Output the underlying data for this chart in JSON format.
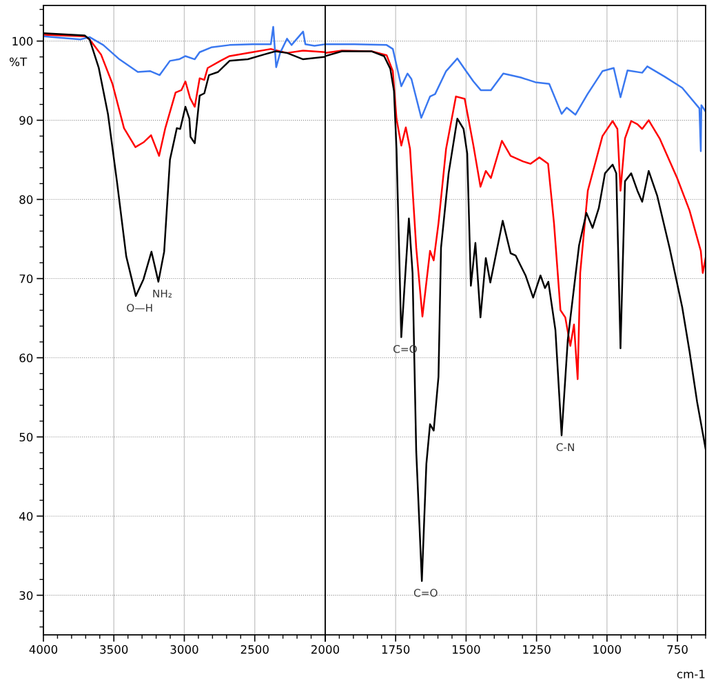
{
  "chart_data": [
    {
      "type": "line",
      "ylabel": "%T",
      "xlim": [
        4000,
        2000
      ],
      "xticks": [
        4000,
        3500,
        3000,
        2500,
        {
          "value": 2000,
          "label": null
        }
      ],
      "ylim": [
        25,
        104.5
      ],
      "yticks": [
        30,
        40,
        50,
        60,
        70,
        80,
        90,
        100
      ],
      "grid": true,
      "marker": "none",
      "line_style": "solid",
      "annotations": [
        {
          "text": "O—H",
          "x": 3344,
          "y": 67.8
        },
        {
          "text": "NH₂",
          "x": 3184,
          "y": 69.6
        }
      ],
      "series": [
        {
          "color": "#ff0000",
          "x": [
            4000,
            3707,
            3672,
            3591,
            3510,
            3428,
            3347,
            3290,
            3236,
            3179,
            3135,
            3062,
            3021,
            2992,
            2959,
            2926,
            2891,
            2858,
            2834,
            2744,
            2679,
            2516,
            2386,
            2271,
            2157,
            2000
          ],
          "values": [
            100.8,
            100.6,
            100.2,
            98.3,
            94.6,
            89.0,
            86.6,
            87.2,
            88.1,
            85.5,
            89.0,
            93.5,
            93.8,
            94.9,
            92.8,
            91.7,
            95.3,
            95.1,
            96.6,
            97.5,
            98.1,
            98.6,
            99.0,
            98.5,
            98.8,
            98.6
          ]
        },
        {
          "color": "#3a78f0",
          "x": [
            4000,
            3738,
            3672,
            3575,
            3461,
            3330,
            3241,
            3175,
            3102,
            3037,
            2992,
            2926,
            2891,
            2809,
            2679,
            2516,
            2386,
            2369,
            2348,
            2320,
            2271,
            2239,
            2157,
            2141,
            2076,
            2000
          ],
          "values": [
            100.6,
            100.2,
            100.5,
            99.5,
            97.7,
            96.1,
            96.2,
            95.7,
            97.5,
            97.7,
            98.1,
            97.7,
            98.6,
            99.2,
            99.5,
            99.6,
            99.6,
            101.8,
            96.7,
            98.5,
            100.3,
            99.5,
            101.2,
            99.6,
            99.4,
            99.6
          ]
        },
        {
          "color": "#000000",
          "x": [
            4000,
            3707,
            3672,
            3607,
            3542,
            3477,
            3412,
            3344,
            3290,
            3233,
            3184,
            3143,
            3102,
            3053,
            3029,
            2992,
            2964,
            2956,
            2926,
            2891,
            2858,
            2825,
            2760,
            2679,
            2549,
            2434,
            2353,
            2271,
            2157,
            2000
          ],
          "values": [
            101.0,
            100.7,
            100.2,
            96.6,
            90.8,
            82.1,
            72.8,
            67.8,
            69.9,
            73.4,
            69.6,
            73.4,
            85.0,
            89.0,
            88.9,
            91.7,
            90.2,
            87.9,
            87.1,
            93.1,
            93.4,
            95.7,
            96.1,
            97.5,
            97.7,
            98.3,
            98.7,
            98.5,
            97.7,
            98.0
          ]
        }
      ]
    },
    {
      "type": "line",
      "xlabel": "cm-1",
      "xlim": [
        2000,
        650
      ],
      "xticks": [
        2000,
        1750,
        1500,
        1250,
        1000,
        750
      ],
      "ylim": [
        25,
        104.5
      ],
      "yticks": [
        30,
        40,
        50,
        60,
        70,
        80,
        90,
        100
      ],
      "tick_labels": "x",
      "grid": true,
      "marker": "none",
      "line_style": "solid",
      "annotations": [
        {
          "text": "C=O",
          "x": 1730,
          "y": 62.6
        },
        {
          "text": "C=O",
          "x": 1657,
          "y": 31.8
        },
        {
          "text": "C-N",
          "x": 1161,
          "y": 50.2
        }
      ],
      "series": [
        {
          "color": "#ff0000",
          "x": [
            2000,
            1941,
            1835,
            1782,
            1760,
            1747,
            1730,
            1714,
            1699,
            1677,
            1655,
            1628,
            1615,
            1598,
            1571,
            1536,
            1505,
            1474,
            1449,
            1430,
            1412,
            1373,
            1342,
            1298,
            1271,
            1240,
            1209,
            1188,
            1165,
            1148,
            1130,
            1117,
            1104,
            1095,
            1068,
            1016,
            980,
            963,
            952,
            936,
            914,
            892,
            875,
            852,
            813,
            751,
            707,
            667,
            660,
            650
          ],
          "values": [
            98.5,
            98.8,
            98.7,
            98.2,
            96.2,
            90.2,
            86.8,
            89.1,
            86.4,
            73.9,
            65.2,
            73.5,
            72.3,
            77.0,
            86.4,
            93.0,
            92.7,
            86.8,
            81.6,
            83.6,
            82.7,
            87.4,
            85.5,
            84.8,
            84.5,
            85.3,
            84.5,
            77.0,
            66.0,
            65.1,
            61.5,
            64.2,
            57.3,
            70.7,
            81.1,
            88.0,
            89.9,
            88.9,
            81.1,
            87.7,
            89.9,
            89.5,
            88.9,
            90.0,
            87.7,
            82.7,
            78.6,
            73.5,
            70.7,
            72.6
          ]
        },
        {
          "color": "#3a78f0",
          "x": [
            2000,
            1897,
            1782,
            1760,
            1730,
            1708,
            1694,
            1659,
            1628,
            1610,
            1571,
            1531,
            1500,
            1474,
            1448,
            1412,
            1368,
            1306,
            1254,
            1205,
            1161,
            1143,
            1112,
            1069,
            1016,
            976,
            952,
            927,
            875,
            857,
            795,
            733,
            672,
            667,
            665,
            650
          ],
          "values": [
            99.6,
            99.6,
            99.5,
            99.0,
            94.3,
            95.9,
            95.2,
            90.3,
            93.0,
            93.3,
            96.2,
            97.8,
            96.2,
            94.9,
            93.8,
            93.8,
            95.9,
            95.4,
            94.8,
            94.6,
            90.8,
            91.6,
            90.7,
            93.3,
            96.2,
            96.6,
            92.9,
            96.3,
            96.0,
            96.8,
            95.5,
            94.1,
            91.5,
            86.1,
            91.9,
            91.1
          ]
        },
        {
          "color": "#000000",
          "x": [
            2000,
            1941,
            1835,
            1791,
            1769,
            1756,
            1747,
            1738,
            1730,
            1703,
            1690,
            1677,
            1657,
            1641,
            1628,
            1615,
            1598,
            1589,
            1562,
            1531,
            1509,
            1496,
            1483,
            1467,
            1449,
            1430,
            1414,
            1370,
            1342,
            1324,
            1289,
            1262,
            1236,
            1220,
            1208,
            1183,
            1161,
            1139,
            1099,
            1073,
            1051,
            1029,
            1007,
            980,
            967,
            952,
            936,
            914,
            892,
            875,
            852,
            822,
            778,
            733,
            707,
            680,
            650
          ],
          "values": [
            98.1,
            98.7,
            98.7,
            98.1,
            96.5,
            93.7,
            86.4,
            73.9,
            62.6,
            77.6,
            70.7,
            48.2,
            31.8,
            46.6,
            51.6,
            50.8,
            57.6,
            73.9,
            83.3,
            90.2,
            88.9,
            85.8,
            69.1,
            74.5,
            65.1,
            72.6,
            69.5,
            77.3,
            73.2,
            72.9,
            70.4,
            67.6,
            70.4,
            68.8,
            69.6,
            63.5,
            50.2,
            62.3,
            74.2,
            78.3,
            76.4,
            78.9,
            83.3,
            84.4,
            83.3,
            61.2,
            82.3,
            83.3,
            81.1,
            79.7,
            83.6,
            80.5,
            73.9,
            66.4,
            60.8,
            54.4,
            48.5
          ]
        }
      ]
    }
  ]
}
